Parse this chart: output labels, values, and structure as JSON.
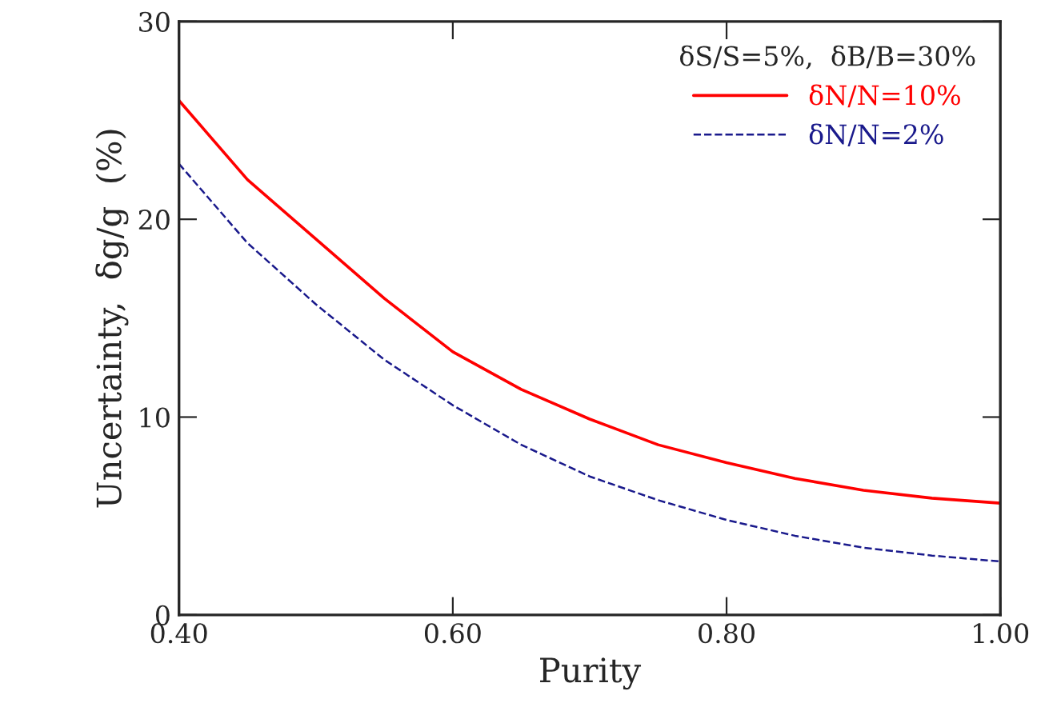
{
  "chart_data": {
    "type": "line",
    "xlabel": "Purity",
    "ylabel": "Uncertainty,  δg/g  (%)",
    "legend_title": "δS/S=5%,  δB/B=30%",
    "x": [
      0.4,
      0.45,
      0.5,
      0.55,
      0.6,
      0.65,
      0.7,
      0.75,
      0.8,
      0.85,
      0.9,
      0.95,
      1.0
    ],
    "series": [
      {
        "name": "δN/N=10%",
        "color": "#ff0000",
        "line_style": "solid",
        "values": [
          26.0,
          22.0,
          19.0,
          16.0,
          13.3,
          11.4,
          9.9,
          8.6,
          7.7,
          6.9,
          6.3,
          5.9,
          5.65
        ]
      },
      {
        "name": "δN/N=2%",
        "color": "#1a1a8c",
        "line_style": "dashed",
        "values": [
          22.8,
          18.8,
          15.7,
          12.9,
          10.6,
          8.6,
          7.0,
          5.8,
          4.8,
          4.0,
          3.4,
          3.0,
          2.7
        ]
      }
    ],
    "xlim": [
      0.4,
      1.0
    ],
    "ylim": [
      0,
      30
    ],
    "xticks": [
      {
        "value": 0.4,
        "label": "0.40"
      },
      {
        "value": 0.6,
        "label": "0.60"
      },
      {
        "value": 0.8,
        "label": "0.80"
      },
      {
        "value": 1.0,
        "label": "1.00"
      }
    ],
    "yticks": [
      0,
      10,
      20,
      30
    ],
    "grid": false,
    "legend": "top right"
  }
}
